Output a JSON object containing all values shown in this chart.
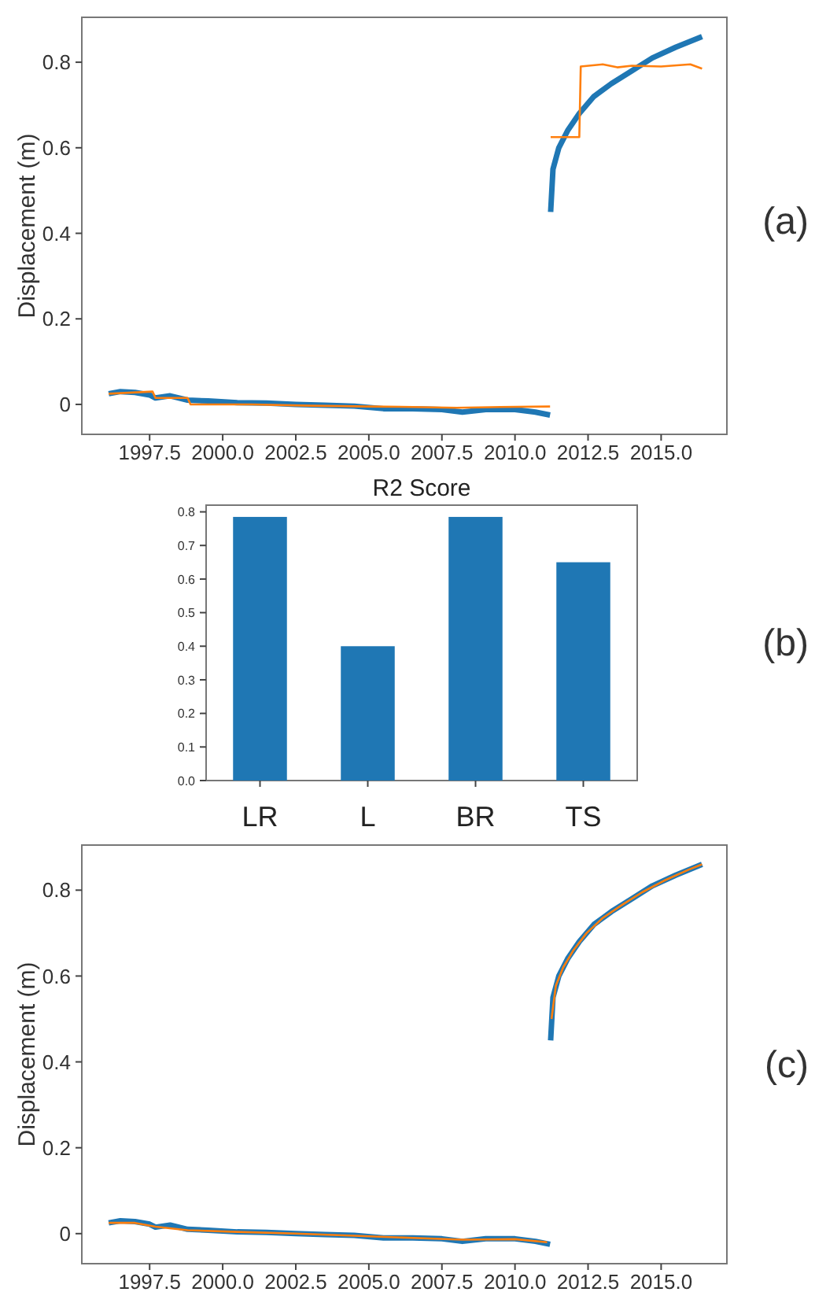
{
  "chart_data": [
    {
      "type": "line",
      "ylabel": "Displacement (m)",
      "annotations": [
        "(a)"
      ],
      "xlim": [
        1995.18,
        2017.25
      ],
      "ylim": [
        -0.07,
        0.905
      ],
      "xticks": [
        {
          "value": 1997.5,
          "label": "1997.5"
        },
        {
          "value": 2000,
          "label": "2000.0"
        },
        {
          "value": 2002.5,
          "label": "2002.5"
        },
        {
          "value": 2005,
          "label": "2005.0"
        },
        {
          "value": 2007.5,
          "label": "2007.5"
        },
        {
          "value": 2010,
          "label": "2010.0"
        },
        {
          "value": 2012.5,
          "label": "2012.5"
        },
        {
          "value": 2015,
          "label": "2015.0"
        }
      ],
      "yticks": [
        0,
        0.2,
        0.4,
        0.6,
        0.8
      ],
      "series": [
        {
          "color": "#1f77b4",
          "x": [
            1996.1,
            1996.5,
            1997.0,
            1997.5,
            1997.7,
            1998.2,
            1998.8,
            1999.5,
            2000.5,
            2001.5,
            2002.5,
            2003.5,
            2004.5,
            2005.5,
            2006.5,
            2007.5,
            2008.2,
            2009.0,
            2010.0,
            2010.7,
            2011.2,
            null,
            2011.22,
            2011.3,
            2011.5,
            2011.8,
            2012.2,
            2012.7,
            2013.3,
            2014.0,
            2014.7,
            2015.5,
            2016.4
          ],
          "values": [
            0.025,
            0.03,
            0.028,
            0.022,
            0.015,
            0.02,
            0.01,
            0.008,
            0.004,
            0.003,
            0.0,
            -0.002,
            -0.004,
            -0.01,
            -0.01,
            -0.012,
            -0.018,
            -0.012,
            -0.012,
            -0.018,
            -0.025,
            null,
            0.45,
            0.55,
            0.6,
            0.64,
            0.68,
            0.72,
            0.75,
            0.78,
            0.81,
            0.835,
            0.86
          ]
        },
        {
          "color": "#ff7f0e",
          "x": [
            1996.1,
            1997.6,
            1997.7,
            1998.8,
            1998.9,
            2001.0,
            2003.0,
            2005.0,
            2006.5,
            2008.0,
            2009.5,
            2011.2,
            null,
            2011.22,
            2012.2,
            2012.25,
            2013.0,
            2013.5,
            2014.0,
            2015.0,
            2016.0,
            2016.4
          ],
          "values": [
            0.025,
            0.03,
            0.015,
            0.015,
            0.0,
            0.0,
            -0.003,
            -0.005,
            -0.006,
            -0.008,
            -0.006,
            -0.005,
            null,
            0.625,
            0.625,
            0.79,
            0.795,
            0.788,
            0.792,
            0.79,
            0.795,
            0.785
          ]
        }
      ]
    },
    {
      "type": "bar",
      "title": "R2 Score",
      "categories": [
        "LR",
        "L",
        "BR",
        "TS"
      ],
      "values": [
        0.785,
        0.4,
        0.785,
        0.65
      ],
      "color": "#1f77b4",
      "annotations": [
        "(b)"
      ],
      "ylim": [
        0,
        0.82
      ],
      "yticks": [
        {
          "value": 0,
          "label": "0.0"
        },
        0.1,
        0.2,
        0.3,
        0.4,
        0.5,
        0.6,
        0.7,
        0.8
      ]
    },
    {
      "type": "line",
      "ylabel": "Displacement (m)",
      "annotations": [
        "(c)"
      ],
      "xlim": [
        1995.18,
        2017.25
      ],
      "ylim": [
        -0.07,
        0.905
      ],
      "xticks": [
        {
          "value": 1997.5,
          "label": "1997.5"
        },
        {
          "value": 2000,
          "label": "2000.0"
        },
        {
          "value": 2002.5,
          "label": "2002.5"
        },
        {
          "value": 2005,
          "label": "2005.0"
        },
        {
          "value": 2007.5,
          "label": "2007.5"
        },
        {
          "value": 2010,
          "label": "2010.0"
        },
        {
          "value": 2012.5,
          "label": "2012.5"
        },
        {
          "value": 2015,
          "label": "2015.0"
        }
      ],
      "yticks": [
        0,
        0.2,
        0.4,
        0.6,
        0.8
      ],
      "series": [
        {
          "color": "#1f77b4",
          "x": [
            1996.1,
            1996.5,
            1997.0,
            1997.5,
            1997.7,
            1998.2,
            1998.8,
            1999.5,
            2000.5,
            2001.5,
            2002.5,
            2003.5,
            2004.5,
            2005.5,
            2006.5,
            2007.5,
            2008.2,
            2009.0,
            2010.0,
            2010.7,
            2011.2,
            null,
            2011.22,
            2011.3,
            2011.5,
            2011.8,
            2012.2,
            2012.7,
            2013.3,
            2014.0,
            2014.7,
            2015.5,
            2016.4
          ],
          "values": [
            0.025,
            0.03,
            0.028,
            0.022,
            0.015,
            0.02,
            0.01,
            0.008,
            0.004,
            0.003,
            0.0,
            -0.002,
            -0.004,
            -0.01,
            -0.01,
            -0.012,
            -0.018,
            -0.012,
            -0.012,
            -0.018,
            -0.025,
            null,
            0.45,
            0.55,
            0.6,
            0.64,
            0.68,
            0.72,
            0.75,
            0.78,
            0.81,
            0.835,
            0.86
          ]
        },
        {
          "color": "#ff7f0e",
          "x": [
            1996.1,
            1997.0,
            1997.7,
            1998.8,
            2000.5,
            2002.5,
            2004.5,
            2006.5,
            2008.2,
            2010.0,
            2011.1,
            null,
            2011.25,
            2011.4,
            2011.65,
            2012.0,
            2012.45,
            2013.0,
            2013.65,
            2014.35,
            2015.1,
            2015.95,
            2016.4
          ],
          "values": [
            0.025,
            0.025,
            0.016,
            0.008,
            0.004,
            0.0,
            -0.005,
            -0.01,
            -0.014,
            -0.013,
            -0.02,
            null,
            0.5,
            0.578,
            0.62,
            0.66,
            0.7,
            0.735,
            0.765,
            0.795,
            0.822,
            0.848,
            0.86
          ]
        }
      ]
    }
  ]
}
